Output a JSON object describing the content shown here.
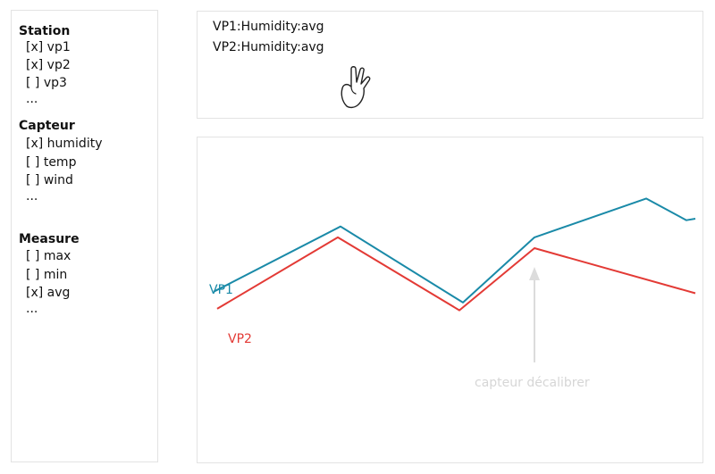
{
  "sidebar": {
    "station": {
      "title": "Station",
      "items": [
        {
          "label": "[x] vp1",
          "checked": true
        },
        {
          "label": "[x] vp2",
          "checked": true
        },
        {
          "label": "[ ] vp3",
          "checked": false
        }
      ],
      "more": "..."
    },
    "capteur": {
      "title": "Capteur",
      "items": [
        {
          "label": "[x] humidity",
          "checked": true
        },
        {
          "label": "[ ] temp",
          "checked": false
        },
        {
          "label": "[ ] wind",
          "checked": false
        }
      ],
      "more": "..."
    },
    "measure": {
      "title": "Measure",
      "items": [
        {
          "label": "[ ] max",
          "checked": false
        },
        {
          "label": "[ ] min",
          "checked": false
        },
        {
          "label": "[x] avg",
          "checked": true
        }
      ],
      "more": "..."
    }
  },
  "query_box": {
    "lines": [
      "VP1:Humidity:avg",
      "VP2:Humidity:avg"
    ],
    "cursor_icon": "pointer-hand-icon"
  },
  "chart_data": {
    "type": "line",
    "title": "",
    "xlabel": "",
    "ylabel": "",
    "grid": false,
    "series": [
      {
        "name": "VP1",
        "color": "#1a8aa8",
        "values": [
          0.26,
          0.68,
          0.19,
          0.61,
          0.86,
          0.72,
          0.73
        ]
      },
      {
        "name": "VP2",
        "color": "#e33a35",
        "values": [
          0.15,
          0.61,
          0.14,
          0.54,
          0.25
        ]
      }
    ],
    "annotations": [
      {
        "text": "capteur décalibrer",
        "color": "#d6d6d6"
      }
    ]
  }
}
